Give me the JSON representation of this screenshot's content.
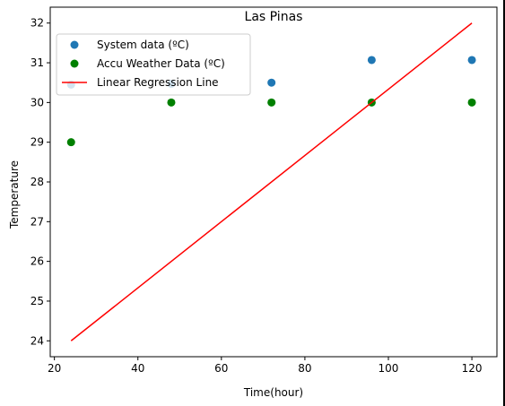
{
  "chart_data": {
    "type": "scatter",
    "title": "Las Pinas",
    "xlabel": "Time(hour)",
    "ylabel": "Temperature",
    "xlim": [
      19,
      126
    ],
    "ylim": [
      23.6,
      32.4
    ],
    "x_ticks": [
      20,
      40,
      60,
      80,
      100,
      120
    ],
    "y_ticks": [
      24,
      25,
      26,
      27,
      28,
      29,
      30,
      31,
      32
    ],
    "grid": false,
    "legend_position": "top-left",
    "series": [
      {
        "name": "System data (ºC)",
        "kind": "scatter",
        "color": "#1f77b4",
        "x": [
          24,
          48,
          72,
          96,
          120
        ],
        "y": [
          30.45,
          30.47,
          30.5,
          31.07,
          31.07
        ]
      },
      {
        "name": "Accu Weather Data (ºC)",
        "kind": "scatter",
        "color": "#008000",
        "x": [
          24,
          48,
          72,
          96,
          120
        ],
        "y": [
          29,
          30,
          30,
          30,
          30
        ]
      },
      {
        "name": "Linear Regression Line",
        "kind": "line",
        "color": "#ff0000",
        "x": [
          24,
          120
        ],
        "y": [
          24,
          32
        ]
      }
    ]
  }
}
